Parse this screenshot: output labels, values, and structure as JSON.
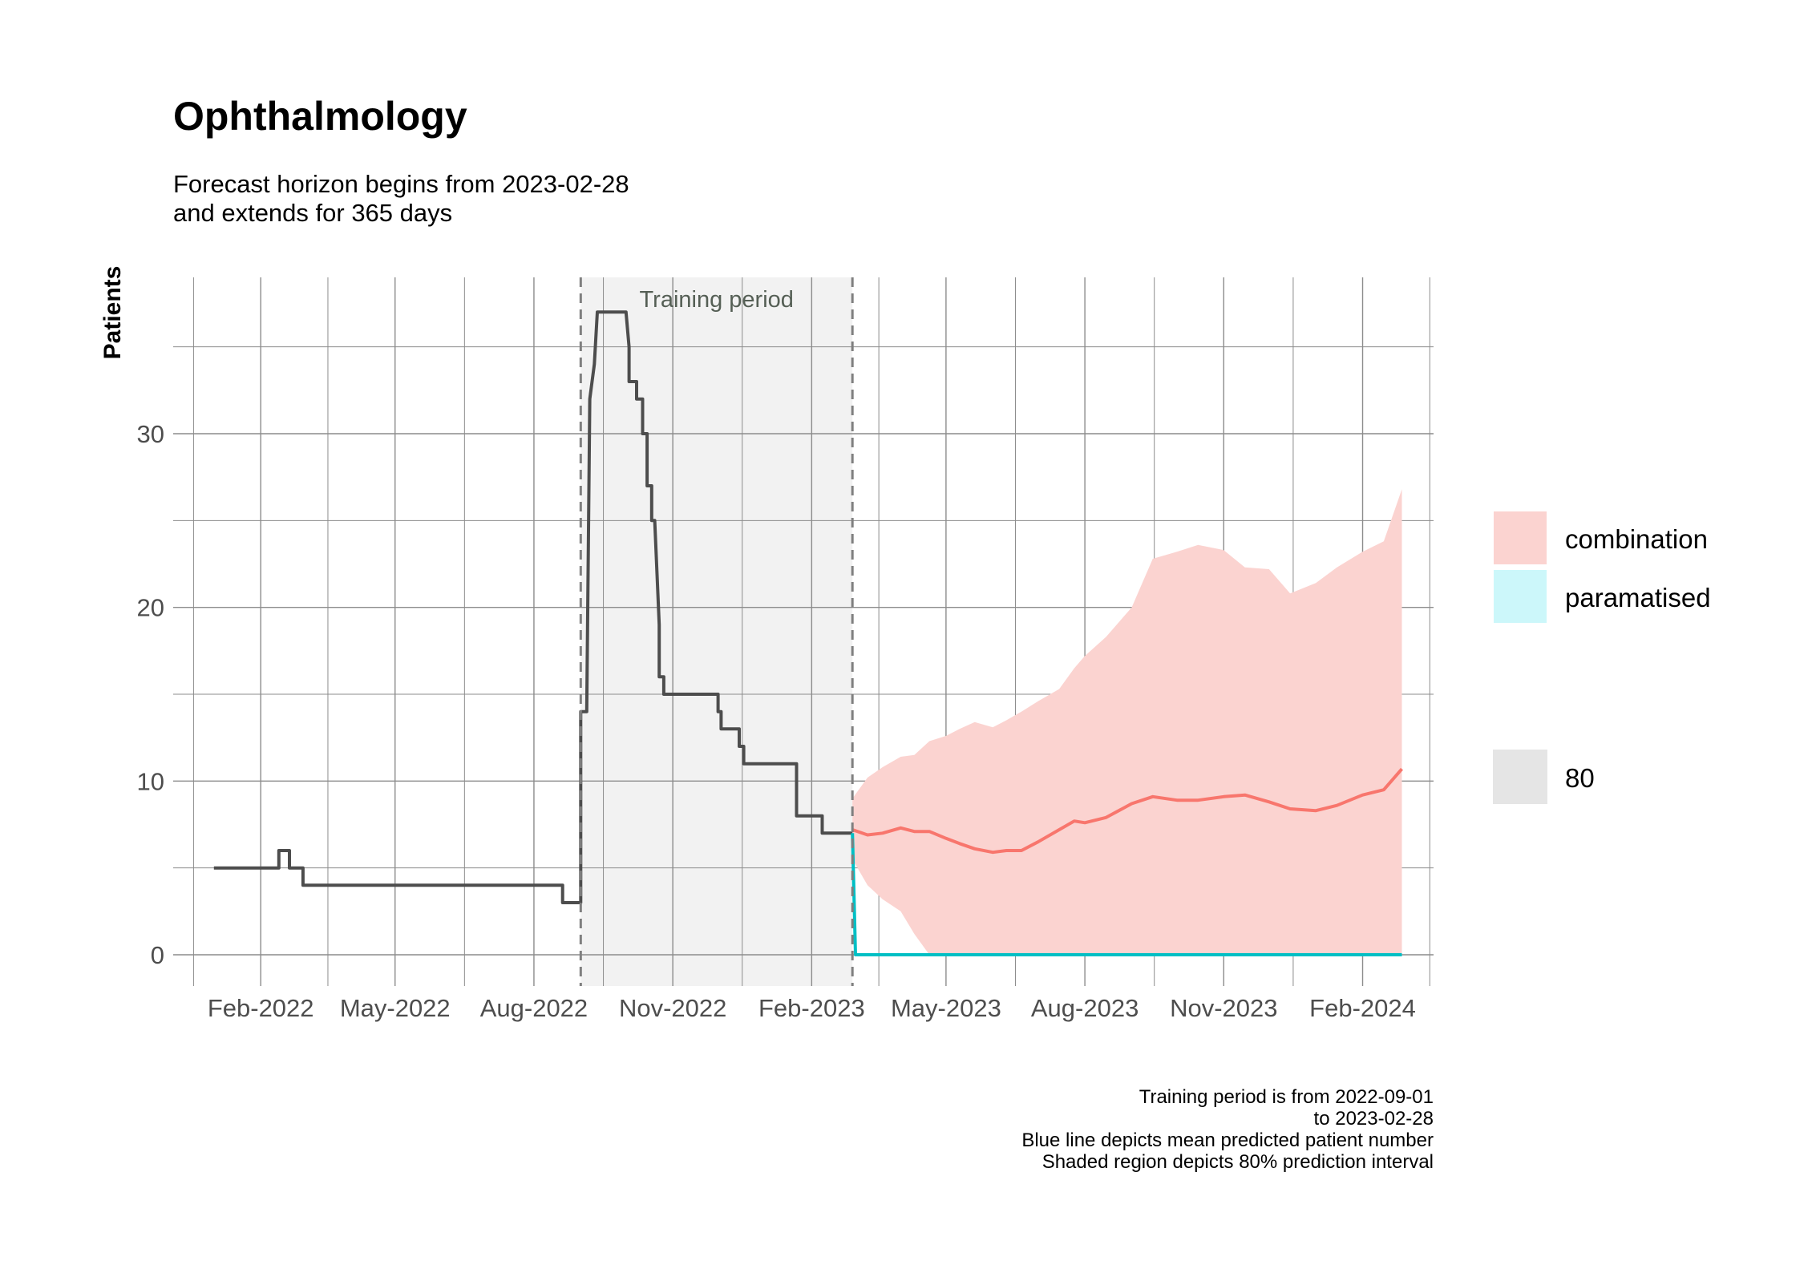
{
  "title": "Ophthalmology",
  "subtitle_line1": "Forecast horizon begins from 2023-02-28",
  "subtitle_line2": "and extends for 365 days",
  "caption": [
    "Training period is from 2022-09-01",
    "to 2023-02-28",
    "Blue line depicts mean predicted patient number",
    "Shaded region depicts 80% prediction interval"
  ],
  "chart_data": {
    "type": "line",
    "ylabel": "Patients",
    "xlabel": "",
    "ylim": [
      -1.8,
      39
    ],
    "xlim": [
      "2021-12-05",
      "2024-03-19"
    ],
    "x_ticks": [
      "2022-02-01",
      "2022-05-01",
      "2022-08-01",
      "2022-11-01",
      "2023-02-01",
      "2023-05-01",
      "2023-08-01",
      "2023-11-01",
      "2024-02-01"
    ],
    "x_tick_labels": [
      "Feb-2022",
      "May-2022",
      "Aug-2022",
      "Nov-2022",
      "Feb-2023",
      "May-2023",
      "Aug-2023",
      "Nov-2023",
      "Feb-2024"
    ],
    "y_ticks": [
      0,
      10,
      20,
      30
    ],
    "y_tick_labels": [
      "0",
      "10",
      "20",
      "30"
    ],
    "grid": true,
    "training_period": {
      "start": "2022-09-01",
      "end": "2023-02-28",
      "label": "Training period"
    },
    "observed": {
      "color": "#4d4d4d",
      "x": [
        "2022-01-01",
        "2022-02-13",
        "2022-02-13",
        "2022-02-20",
        "2022-02-20",
        "2022-03-01",
        "2022-03-01",
        "2022-08-20",
        "2022-08-20",
        "2022-09-01",
        "2022-09-01",
        "2022-09-05",
        "2022-09-07",
        "2022-09-10",
        "2022-09-12",
        "2022-09-15",
        "2022-09-15",
        "2022-10-01",
        "2022-10-03",
        "2022-10-03",
        "2022-10-08",
        "2022-10-08",
        "2022-10-12",
        "2022-10-12",
        "2022-10-15",
        "2022-10-15",
        "2022-10-18",
        "2022-10-18",
        "2022-10-20",
        "2022-10-23",
        "2022-10-23",
        "2022-10-26",
        "2022-10-26",
        "2022-12-01",
        "2022-12-01",
        "2022-12-03",
        "2022-12-03",
        "2022-12-15",
        "2022-12-15",
        "2022-12-18",
        "2022-12-18",
        "2023-01-22",
        "2023-01-22",
        "2023-02-08",
        "2023-02-08",
        "2023-02-28"
      ],
      "y": [
        5,
        5,
        6,
        6,
        5,
        5,
        4,
        4,
        3,
        3,
        14,
        14,
        32,
        34,
        37,
        37,
        37,
        37,
        35,
        33,
        33,
        32,
        32,
        30,
        30,
        27,
        27,
        25,
        25,
        19,
        16,
        16,
        15,
        15,
        14,
        14,
        13,
        13,
        12,
        12,
        11,
        11,
        8,
        8,
        7,
        7
      ]
    },
    "series": [
      {
        "name": "combination",
        "color": "#f8766d",
        "fill": "#fbd3d0",
        "x": [
          "2023-02-28",
          "2023-03-10",
          "2023-03-20",
          "2023-04-01",
          "2023-04-10",
          "2023-04-20",
          "2023-05-01",
          "2023-05-10",
          "2023-05-20",
          "2023-06-01",
          "2023-06-10",
          "2023-06-20",
          "2023-07-01",
          "2023-07-15",
          "2023-07-25",
          "2023-08-01",
          "2023-08-15",
          "2023-09-01",
          "2023-09-15",
          "2023-10-01",
          "2023-10-15",
          "2023-11-01",
          "2023-11-15",
          "2023-12-01",
          "2023-12-15",
          "2024-01-01",
          "2024-01-15",
          "2024-02-01",
          "2024-02-15",
          "2024-02-27"
        ],
        "values": [
          7.2,
          6.9,
          7.0,
          7.3,
          7.1,
          7.1,
          6.7,
          6.4,
          6.1,
          5.9,
          6.0,
          6.0,
          6.5,
          7.2,
          7.7,
          7.6,
          7.9,
          8.7,
          9.1,
          8.9,
          8.9,
          9.1,
          9.2,
          8.8,
          8.4,
          8.3,
          8.6,
          9.2,
          9.5,
          10.7
        ],
        "upper": [
          9.0,
          10.2,
          10.8,
          11.4,
          11.5,
          12.3,
          12.6,
          13.0,
          13.4,
          13.1,
          13.5,
          14.0,
          14.6,
          15.3,
          16.5,
          17.2,
          18.3,
          20.0,
          22.8,
          23.2,
          23.6,
          23.3,
          22.3,
          22.2,
          20.8,
          21.4,
          22.3,
          23.2,
          23.8,
          26.8
        ],
        "lower": [
          5.5,
          4.0,
          3.2,
          2.5,
          1.2,
          0,
          0,
          0,
          0,
          0,
          0,
          0,
          0,
          0,
          0,
          0,
          0,
          0,
          0,
          0,
          0,
          0,
          0,
          0,
          0,
          0,
          0,
          0,
          0,
          0
        ]
      },
      {
        "name": "paramatised",
        "color": "#00bfc4",
        "fill": "#ccf7fa",
        "x": [
          "2023-02-28",
          "2023-03-02",
          "2024-02-27"
        ],
        "values": [
          7,
          0,
          0
        ]
      }
    ],
    "legend": {
      "placement": "right",
      "fill_entries": [
        "combination",
        "paramatised"
      ],
      "level_title": "80",
      "level_color": "#e5e5e5"
    }
  }
}
